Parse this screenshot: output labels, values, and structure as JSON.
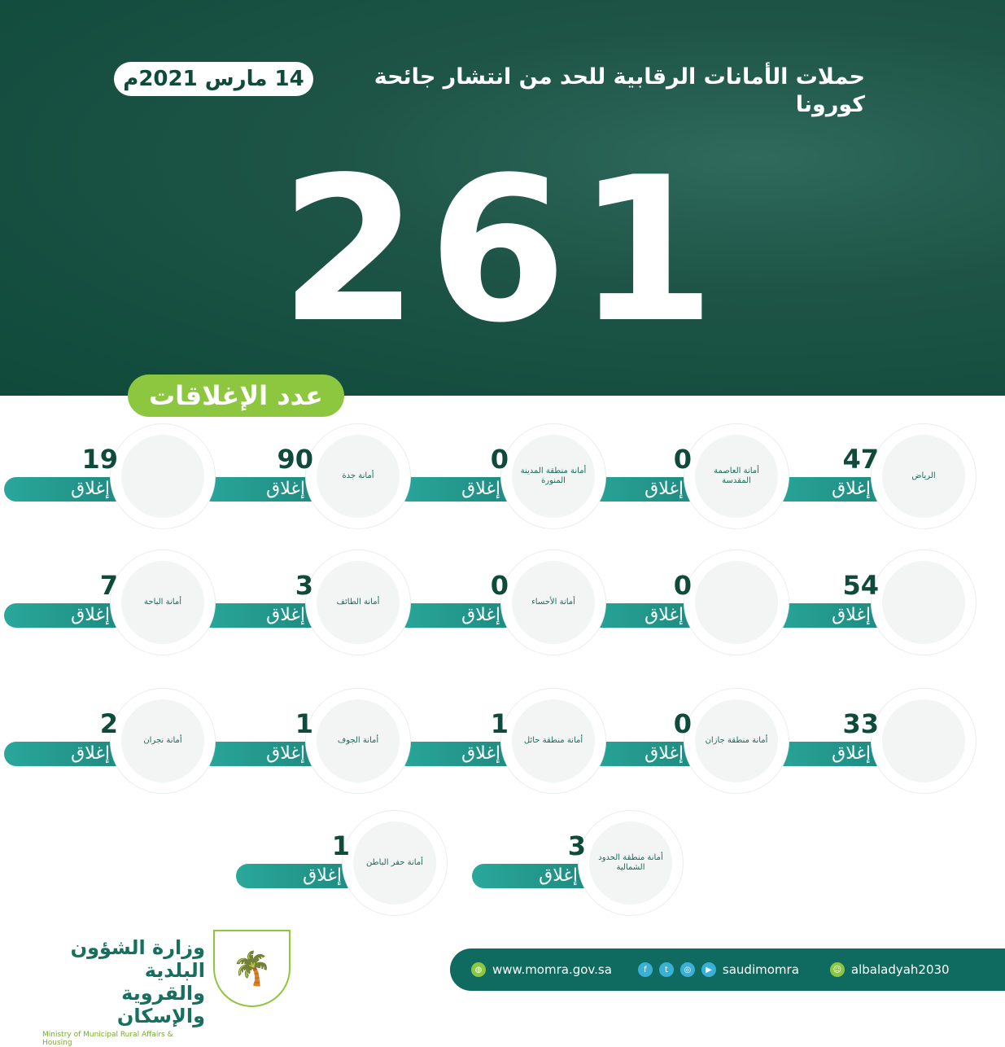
{
  "header": {
    "title": "حملات الأمانات الرقابية للحد من انتشار جائحة كورونا",
    "date": "14 مارس 2021م",
    "total": "261",
    "closures_label": "عدد الإغلاقات"
  },
  "unit_label": "إغلاق",
  "items": [
    {
      "logo": "الرياض",
      "value": "47"
    },
    {
      "logo": "أمانة العاصمة المقدسة",
      "value": "0"
    },
    {
      "logo": "أمانة منطقة المدينة المنورة",
      "value": "0"
    },
    {
      "logo": "أمانة جدة",
      "value": "90"
    },
    {
      "logo": "",
      "value": "19"
    },
    {
      "logo": "",
      "value": "54"
    },
    {
      "logo": "",
      "value": "0"
    },
    {
      "logo": "أمانة الأحساء",
      "value": "0"
    },
    {
      "logo": "أمانة الطائف",
      "value": "3"
    },
    {
      "logo": "أمانة الباحة",
      "value": "7"
    },
    {
      "logo": "",
      "value": "33"
    },
    {
      "logo": "أمانة منطقة جازان",
      "value": "0"
    },
    {
      "logo": "أمانة منطقة حائل",
      "value": "1"
    },
    {
      "logo": "أمانة الجوف",
      "value": "1"
    },
    {
      "logo": "أمانة نجران",
      "value": "2"
    },
    {
      "logo": "أمانة منطقة الحدود الشمالية",
      "value": "3"
    },
    {
      "logo": "أمانة حفر الباطن",
      "value": "1"
    }
  ],
  "footer": {
    "ministry_ar_line1": "وزارة الشؤون البلدية",
    "ministry_ar_line2": "والقروية والإسكان",
    "ministry_en": "Ministry of Municipal Rural Affairs & Housing",
    "website": "www.momra.gov.sa",
    "social_handle": "saudimomra",
    "snapchat": "albaladyah2030"
  },
  "colors": {
    "hero": "#0f4a3b",
    "accent_green": "#8dc63f",
    "teal": "#1a8177"
  }
}
